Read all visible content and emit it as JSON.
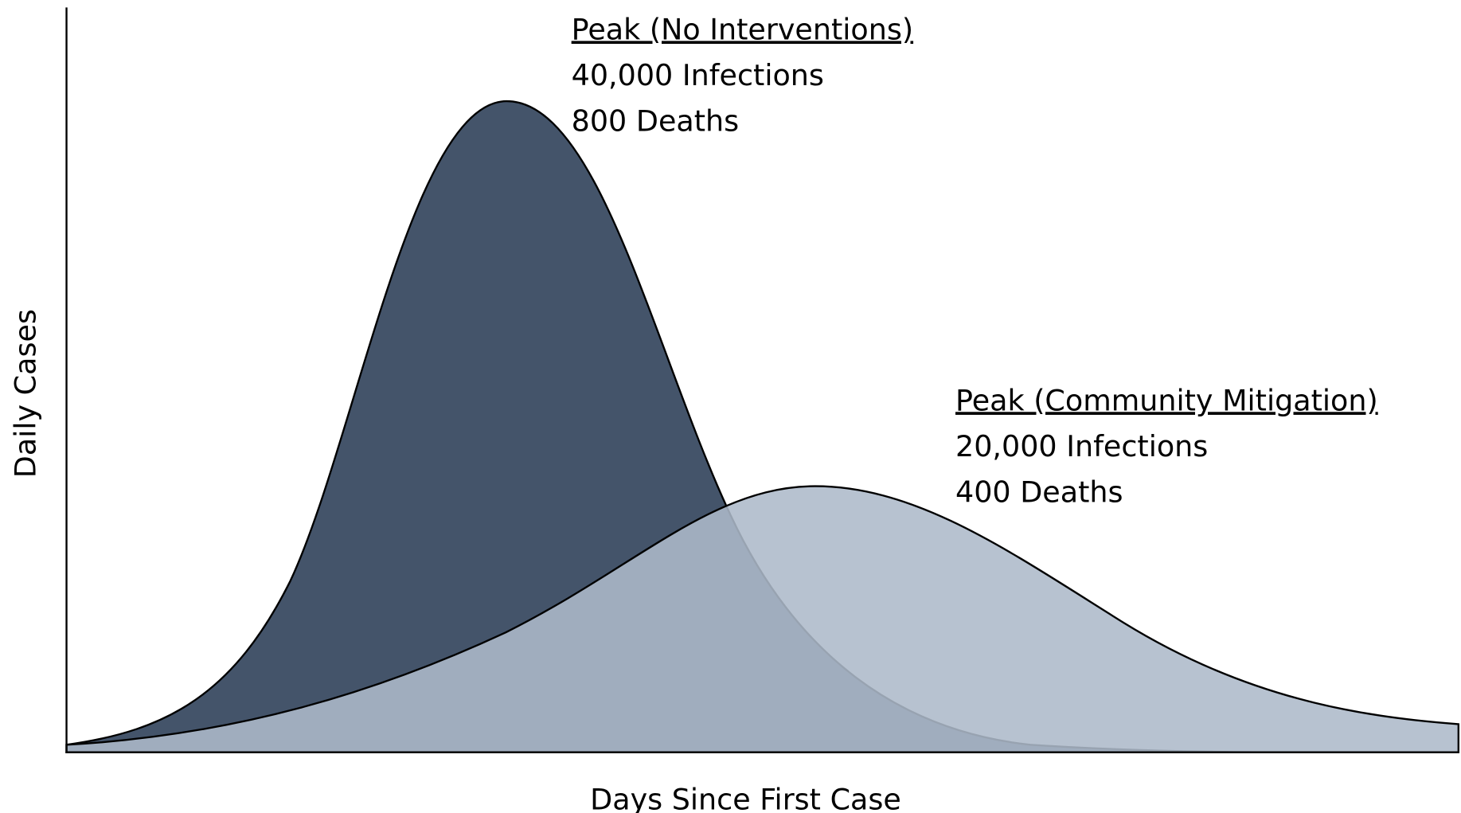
{
  "chart_data": {
    "type": "area",
    "x_label": "Days Since First Case",
    "y_label": "Daily Cases",
    "colors": [
      "#44546a",
      "#adb9ca"
    ],
    "annotations": [
      {
        "title": "Peak (No Interventions)",
        "lines": [
          "40,000 Infections",
          "800 Deaths"
        ]
      },
      {
        "title": "Peak (Community Mitigation)",
        "lines": [
          "20,000 Infections",
          "400 Deaths"
        ]
      }
    ]
  }
}
